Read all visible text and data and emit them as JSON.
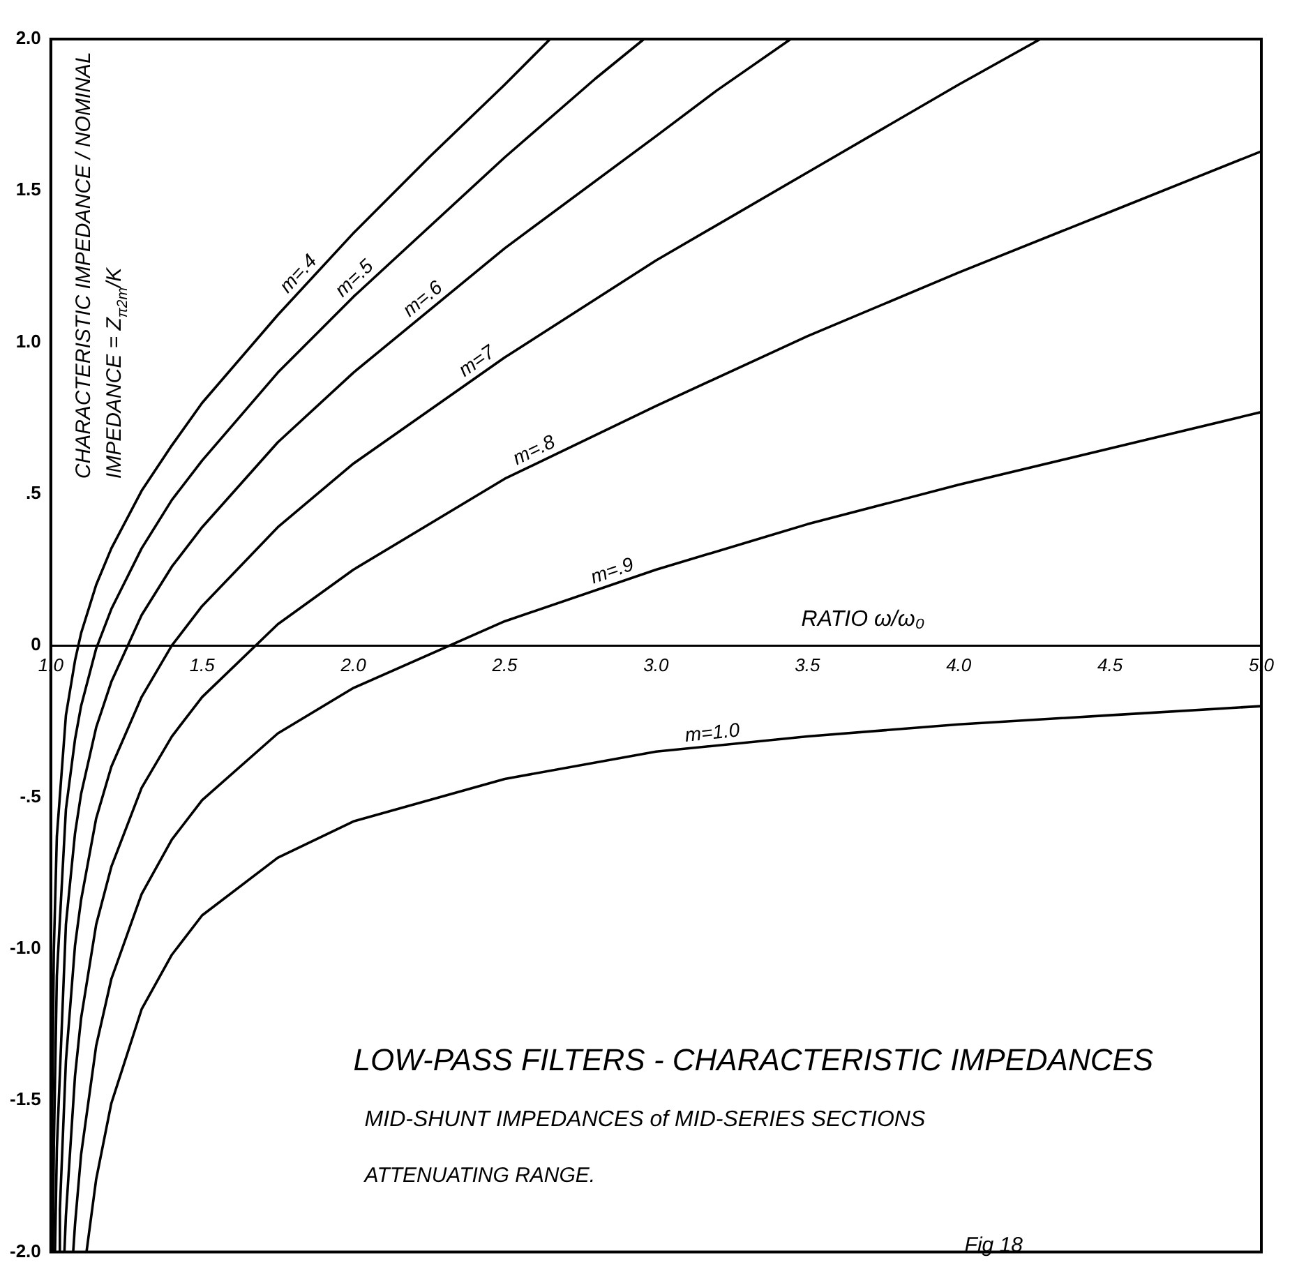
{
  "chart_data": {
    "type": "line",
    "title": "LOW-PASS FILTERS - CHARACTERISTIC IMPEDANCES",
    "subtitle": "MID-SHUNT IMPEDANCES of MID-SERIES SECTIONS",
    "xlabel": "RATIO ω/ω₀",
    "ylabel": "CHARACTERISTIC IMPEDANCE / NOMINAL IMPEDANCE = Z$_{π2m}$/K",
    "annotations": [
      "ATTENUATING RANGE.",
      "Fig 18"
    ],
    "xlim": [
      1.0,
      5.0
    ],
    "ylim": [
      -2.0,
      2.0
    ],
    "xticks": [
      {
        "value": 1.0,
        "label": "1.0"
      },
      {
        "value": 1.5,
        "label": "1.5"
      },
      {
        "value": 2.0,
        "label": "2.0"
      },
      {
        "value": 2.5,
        "label": "2.5"
      },
      {
        "value": 3.0,
        "label": "3.0"
      },
      {
        "value": 3.5,
        "label": "3.5"
      },
      {
        "value": 4.0,
        "label": "4.0"
      },
      {
        "value": 4.5,
        "label": "4.5"
      },
      {
        "value": 5.0,
        "label": "5.0"
      }
    ],
    "yticks": [
      {
        "value": -2.0,
        "label": "-2.0"
      },
      {
        "value": -1.5,
        "label": "-1.5"
      },
      {
        "value": -1.0,
        "label": "-1.0"
      },
      {
        "value": -0.5,
        "label": "-.5"
      },
      0,
      {
        "value": 0.5,
        "label": ".5"
      },
      {
        "value": 1.0,
        "label": "1.0"
      },
      {
        "value": 1.5,
        "label": "1.5"
      },
      {
        "value": 2.0,
        "label": "2.0"
      }
    ],
    "legend": false,
    "marker": "none",
    "line_style": "solid",
    "series": [
      {
        "name": "m=.4",
        "color": "#000000",
        "x": [
          1.003,
          1.005,
          1.01,
          1.02,
          1.05,
          1.08,
          1.1,
          1.15,
          1.2,
          1.3,
          1.4,
          1.5,
          1.75,
          2.0,
          2.25,
          2.5,
          2.65
        ],
        "values": [
          -2.0,
          -1.51,
          -1.01,
          -0.63,
          -0.23,
          -0.05,
          0.04,
          0.2,
          0.32,
          0.51,
          0.66,
          0.8,
          1.09,
          1.36,
          1.61,
          1.85,
          2.0
        ]
      },
      {
        "name": "m=.5",
        "color": "#000000",
        "x": [
          1.007,
          1.01,
          1.02,
          1.05,
          1.08,
          1.1,
          1.15,
          1.2,
          1.3,
          1.4,
          1.5,
          1.75,
          2.0,
          2.5,
          2.8,
          2.96
        ],
        "values": [
          -2.0,
          -1.66,
          -1.09,
          -0.54,
          -0.31,
          -0.2,
          -0.01,
          0.12,
          0.32,
          0.48,
          0.61,
          0.9,
          1.15,
          1.61,
          1.87,
          2.0
        ]
      },
      {
        "name": "m=.6",
        "color": "#000000",
        "x": [
          1.014,
          1.02,
          1.05,
          1.08,
          1.1,
          1.15,
          1.2,
          1.3,
          1.4,
          1.5,
          1.75,
          2.0,
          2.5,
          3.0,
          3.2,
          3.445
        ],
        "values": [
          -2.0,
          -1.66,
          -0.92,
          -0.62,
          -0.49,
          -0.27,
          -0.12,
          0.1,
          0.26,
          0.39,
          0.67,
          0.9,
          1.31,
          1.68,
          1.83,
          2.0
        ]
      },
      {
        "name": "m=7",
        "color": "#000000",
        "x": [
          1.027,
          1.03,
          1.05,
          1.08,
          1.1,
          1.15,
          1.2,
          1.3,
          1.4,
          1.5,
          1.75,
          2.0,
          2.5,
          3.0,
          3.5,
          4.0,
          4.27
        ],
        "values": [
          -2.0,
          -1.86,
          -1.37,
          -0.99,
          -0.84,
          -0.57,
          -0.4,
          -0.17,
          0.0,
          0.13,
          0.39,
          0.6,
          0.95,
          1.27,
          1.56,
          1.85,
          2.0
        ]
      },
      {
        "name": "m=.8",
        "color": "#000000",
        "x": [
          1.045,
          1.05,
          1.08,
          1.1,
          1.15,
          1.2,
          1.3,
          1.4,
          1.5,
          1.75,
          2.0,
          2.5,
          3.0,
          3.5,
          4.0,
          4.5,
          5.0
        ],
        "values": [
          -2.0,
          -1.88,
          -1.42,
          -1.23,
          -0.92,
          -0.73,
          -0.47,
          -0.3,
          -0.17,
          0.07,
          0.25,
          0.55,
          0.79,
          1.02,
          1.23,
          1.43,
          1.63
        ]
      },
      {
        "name": "m=.9",
        "color": "#000000",
        "x": [
          1.074,
          1.08,
          1.1,
          1.15,
          1.2,
          1.3,
          1.4,
          1.5,
          1.75,
          2.0,
          2.5,
          3.0,
          3.5,
          4.0,
          4.5,
          5.0
        ],
        "values": [
          -2.0,
          -1.91,
          -1.68,
          -1.32,
          -1.1,
          -0.82,
          -0.64,
          -0.51,
          -0.29,
          -0.14,
          0.08,
          0.25,
          0.4,
          0.53,
          0.65,
          0.77
        ]
      },
      {
        "name": "m=1.0",
        "color": "#000000",
        "x": [
          1.118,
          1.15,
          1.2,
          1.3,
          1.4,
          1.5,
          1.75,
          2.0,
          2.5,
          3.0,
          3.5,
          4.0,
          4.5,
          5.0
        ],
        "values": [
          -2.0,
          -1.76,
          -1.51,
          -1.2,
          -1.02,
          -0.89,
          -0.7,
          -0.58,
          -0.44,
          -0.35,
          -0.3,
          -0.26,
          -0.23,
          -0.2
        ]
      }
    ]
  }
}
